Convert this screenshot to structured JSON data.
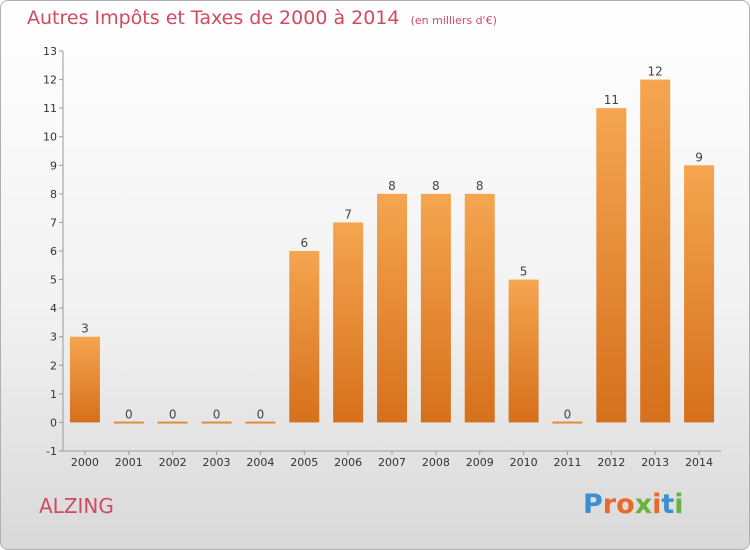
{
  "header": {
    "title": "Autres Impôts et Taxes de 2000 à 2014",
    "subtitle": "(en milliers d'€)"
  },
  "footer": {
    "commune": "ALZING",
    "logo_text": "Proxiti"
  },
  "colors": {
    "bar_top": "#f5a550",
    "bar_bottom": "#d6701c",
    "title": "#d04a60",
    "logo_letters": [
      "#3a8fd0",
      "#e8692b",
      "#e8692b",
      "#6ab23c",
      "#e8692b",
      "#3a8fd0",
      "#6ab23c"
    ]
  },
  "chart_data": {
    "type": "bar",
    "categories": [
      "2000",
      "2001",
      "2002",
      "2003",
      "2004",
      "2005",
      "2006",
      "2007",
      "2008",
      "2009",
      "2010",
      "2011",
      "2012",
      "2013",
      "2014"
    ],
    "values": [
      3,
      0,
      0,
      0,
      0,
      6,
      7,
      8,
      8,
      8,
      5,
      0,
      11,
      12,
      9
    ],
    "ylim": [
      -1,
      13
    ],
    "yticks": [
      -1,
      0,
      1,
      2,
      3,
      4,
      5,
      6,
      7,
      8,
      9,
      10,
      11,
      12,
      13
    ],
    "grid": false,
    "title": "Autres Impôts et Taxes de 2000 à 2014",
    "xlabel": "",
    "ylabel": ""
  }
}
